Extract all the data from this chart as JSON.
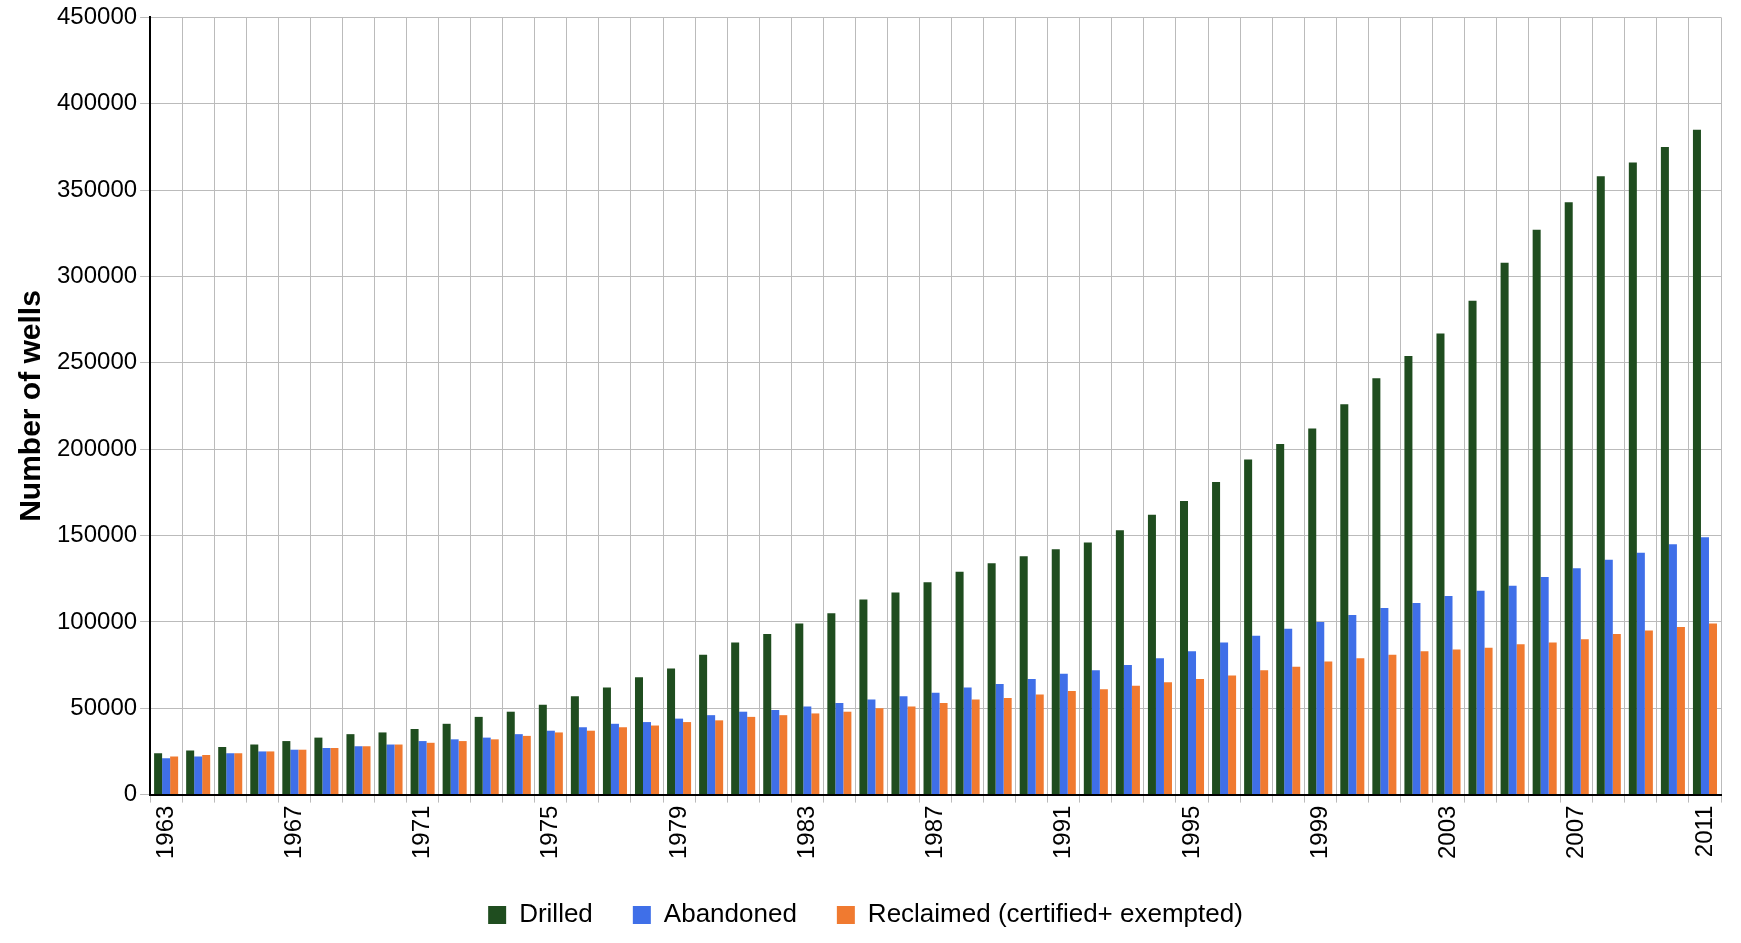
{
  "chart_data": {
    "type": "bar",
    "ylabel": "Number of wells",
    "categories": [
      "1963",
      null,
      null,
      null,
      "1967",
      null,
      null,
      null,
      "1971",
      null,
      null,
      null,
      "1975",
      null,
      null,
      null,
      "1979",
      null,
      null,
      null,
      "1983",
      null,
      null,
      null,
      "1987",
      null,
      null,
      null,
      "1991",
      null,
      null,
      null,
      "1995",
      null,
      null,
      null,
      "1999",
      null,
      null,
      null,
      "2003",
      null,
      null,
      null,
      "2007",
      null,
      null,
      null,
      "2011"
    ],
    "series": [
      {
        "name": "Drilled",
        "color": "#1f4d1f",
        "values": [
          24000,
          25500,
          27500,
          29000,
          31000,
          33000,
          35000,
          36000,
          38000,
          41000,
          45000,
          48000,
          52000,
          57000,
          62000,
          68000,
          73000,
          81000,
          88000,
          93000,
          99000,
          105000,
          113000,
          117000,
          123000,
          129000,
          134000,
          138000,
          142000,
          146000,
          153000,
          162000,
          170000,
          181000,
          194000,
          203000,
          212000,
          226000,
          241000,
          254000,
          267000,
          286000,
          308000,
          327000,
          343000,
          358000,
          366000,
          375000,
          385000
        ]
      },
      {
        "name": "Abandoned",
        "color": "#3f6fe8",
        "values": [
          21000,
          22000,
          24000,
          25000,
          26000,
          27000,
          28000,
          29000,
          31000,
          32000,
          33000,
          35000,
          37000,
          39000,
          41000,
          42000,
          44000,
          46000,
          48000,
          49000,
          51000,
          53000,
          55000,
          57000,
          59000,
          62000,
          64000,
          67000,
          70000,
          72000,
          75000,
          79000,
          83000,
          88000,
          92000,
          96000,
          100000,
          104000,
          108000,
          111000,
          115000,
          118000,
          121000,
          126000,
          131000,
          136000,
          140000,
          145000,
          149000
        ]
      },
      {
        "name": "Reclaimed (certified+ exempted)",
        "color": "#f07a30",
        "values": [
          22000,
          23000,
          24000,
          25000,
          26000,
          27000,
          28000,
          29000,
          30000,
          31000,
          32000,
          34000,
          36000,
          37000,
          39000,
          40000,
          42000,
          43000,
          45000,
          46000,
          47000,
          48000,
          50000,
          51000,
          53000,
          55000,
          56000,
          58000,
          60000,
          61000,
          63000,
          65000,
          67000,
          69000,
          72000,
          74000,
          77000,
          79000,
          81000,
          83000,
          84000,
          85000,
          87000,
          88000,
          90000,
          93000,
          95000,
          97000,
          99000
        ]
      }
    ],
    "ylim": [
      0,
      450000
    ],
    "yticks": [
      0,
      50000,
      100000,
      150000,
      200000,
      250000,
      300000,
      350000,
      400000,
      450000
    ],
    "grid": true,
    "legend": "bottom"
  }
}
